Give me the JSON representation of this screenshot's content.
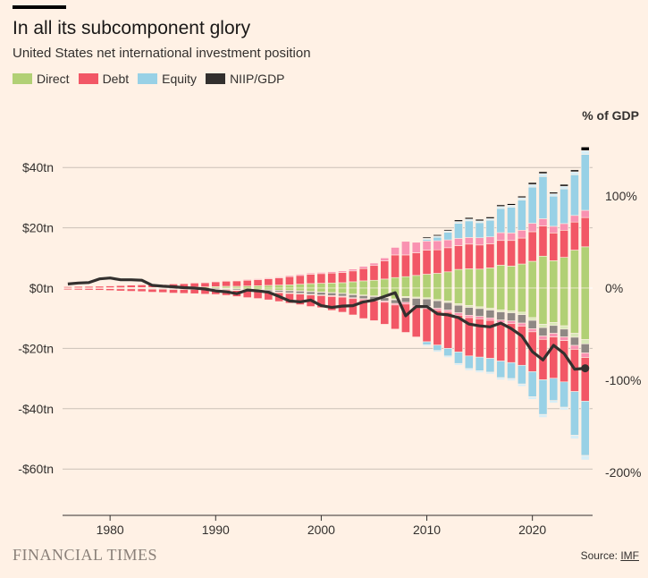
{
  "header": {
    "title": "In all its subcomponent glory",
    "subtitle": "United States net international investment position",
    "right_axis_label": "% of GDP"
  },
  "footer": {
    "brand": "FINANCIAL TIMES",
    "source_prefix": "Source: ",
    "source_link": "IMF"
  },
  "colors": {
    "direct": "#b1d075",
    "debt": "#f25766",
    "equity": "#98d1e6",
    "niip": "#33302e"
  },
  "chart_data": {
    "type": "bar",
    "title": "In all its subcomponent glory",
    "subtitle": "United States net international investment position",
    "legend": [
      {
        "name": "Direct",
        "color": "#b1d075"
      },
      {
        "name": "Debt",
        "color": "#f25766"
      },
      {
        "name": "Equity",
        "color": "#98d1e6"
      },
      {
        "name": "NIIP/GDP",
        "color": "#33302e"
      }
    ],
    "left_axis": {
      "range": [
        -71,
        43
      ],
      "ticks": [
        40,
        20,
        0,
        -20,
        -40,
        -60
      ],
      "tick_labels": [
        "$40tn",
        "$20tn",
        "$0tn",
        "-$20tn",
        "-$40tn",
        "-$60tn"
      ]
    },
    "right_axis": {
      "label": "% of GDP",
      "ticks": [
        100,
        0,
        -100,
        -200
      ],
      "tick_labels": [
        "100%",
        "0%",
        "-100%",
        "-200%"
      ]
    },
    "x_axis": {
      "range": [
        1975.5,
        2025.7
      ],
      "ticks": [
        1980,
        1990,
        2000,
        2010,
        2020
      ],
      "tick_labels": [
        "1980",
        "1990",
        "2000",
        "2010",
        "2020"
      ]
    },
    "years": [
      1976,
      1977,
      1978,
      1979,
      1980,
      1981,
      1982,
      1983,
      1984,
      1985,
      1986,
      1987,
      1988,
      1989,
      1990,
      1991,
      1992,
      1993,
      1994,
      1995,
      1996,
      1997,
      1998,
      1999,
      2000,
      2001,
      2002,
      2003,
      2004,
      2005,
      2006,
      2007,
      2008,
      2009,
      2010,
      2011,
      2012,
      2013,
      2014,
      2015,
      2016,
      2017,
      2018,
      2019,
      2020,
      2021,
      2022,
      2023,
      2024,
      2025
    ],
    "assets": {
      "direct": [
        0.1,
        0.1,
        0.1,
        0.1,
        0.15,
        0.15,
        0.2,
        0.2,
        0.2,
        0.2,
        0.3,
        0.3,
        0.4,
        0.4,
        0.5,
        0.6,
        0.6,
        0.7,
        0.8,
        0.9,
        1.0,
        1.1,
        1.3,
        1.5,
        1.6,
        1.7,
        1.8,
        2.1,
        2.4,
        2.6,
        3.0,
        3.5,
        3.8,
        4.2,
        4.6,
        4.9,
        5.4,
        6.2,
        6.4,
        6.3,
        6.7,
        7.6,
        7.3,
        8.0,
        8.9,
        10.6,
        9.1,
        10.2,
        12.6,
        13.7
      ],
      "debt": [
        0.4,
        0.45,
        0.5,
        0.55,
        0.6,
        0.7,
        0.8,
        0.9,
        1.0,
        1.0,
        1.1,
        1.2,
        1.3,
        1.4,
        1.6,
        1.7,
        1.8,
        1.9,
        2.0,
        2.2,
        2.4,
        2.7,
        2.9,
        3.1,
        3.2,
        3.3,
        3.4,
        3.6,
        4.1,
        4.9,
        6.0,
        7.5,
        7.2,
        7.5,
        8.0,
        7.8,
        8.0,
        7.9,
        8.2,
        8.0,
        8.0,
        8.2,
        8.5,
        8.6,
        9.8,
        10.0,
        9.2,
        9.0,
        9.3,
        9.7
      ],
      "debt_light": [
        0.05,
        0.05,
        0.05,
        0.05,
        0.05,
        0.1,
        0.1,
        0.1,
        0.1,
        0.1,
        0.1,
        0.15,
        0.15,
        0.2,
        0.2,
        0.2,
        0.2,
        0.25,
        0.3,
        0.3,
        0.3,
        0.35,
        0.4,
        0.4,
        0.4,
        0.45,
        0.5,
        0.6,
        0.7,
        0.8,
        1.0,
        2.5,
        4.5,
        3.5,
        3.0,
        3.0,
        2.6,
        2.4,
        2.2,
        2.4,
        2.3,
        2.6,
        2.5,
        2.6,
        2.8,
        2.4,
        2.2,
        2.2,
        2.2,
        2.4
      ],
      "equity": [
        0,
        0,
        0,
        0,
        0,
        0,
        0,
        0,
        0,
        0,
        0,
        0,
        0,
        0,
        0,
        0,
        0,
        0,
        0,
        0,
        0,
        0,
        0,
        0,
        0,
        0,
        0,
        0,
        0,
        0,
        0,
        0,
        0,
        0,
        0.5,
        1.2,
        2.5,
        5.0,
        5.5,
        5.0,
        5.5,
        8.0,
        8.5,
        10.0,
        12.0,
        14.0,
        10.0,
        11.5,
        13.5,
        18.5
      ],
      "equity_light": [
        0,
        0,
        0,
        0,
        0,
        0,
        0,
        0,
        0,
        0,
        0,
        0,
        0,
        0,
        0,
        0,
        0,
        0,
        0,
        0,
        0,
        0,
        0,
        0,
        0,
        0,
        0,
        0,
        0,
        0,
        0,
        0,
        0,
        0,
        0.4,
        0.4,
        0.5,
        0.6,
        0.6,
        0.6,
        0.6,
        0.7,
        0.7,
        0.8,
        0.9,
        1.0,
        0.8,
        0.9,
        1.0,
        1.3
      ],
      "niip": [
        0,
        0,
        0,
        0,
        0,
        0,
        0,
        0,
        0,
        0,
        0,
        0,
        0,
        0,
        0,
        0,
        0,
        0,
        0,
        0,
        0,
        0,
        0,
        0,
        0,
        0,
        0,
        0,
        0,
        0,
        0,
        0,
        0,
        0,
        0.4,
        0.4,
        0.4,
        0.5,
        0.5,
        0.5,
        0.5,
        0.5,
        0.5,
        0.5,
        0.6,
        0.6,
        0.5,
        0.6,
        0.6,
        1.2
      ]
    },
    "liabilities": {
      "direct": [
        0,
        0,
        0,
        0,
        0,
        0,
        0,
        0,
        -0.05,
        -0.05,
        -0.05,
        -0.05,
        -0.05,
        -0.1,
        -0.1,
        -0.2,
        -0.3,
        -0.4,
        -0.5,
        -0.6,
        -0.7,
        -0.8,
        -0.9,
        -1.1,
        -1.3,
        -1.5,
        -1.7,
        -2.0,
        -2.3,
        -2.6,
        -3.0,
        -3.6,
        -2.8,
        -3.0,
        -3.2,
        -3.8,
        -4.3,
        -5.2,
        -5.8,
        -6.2,
        -6.7,
        -7.2,
        -7.5,
        -8.0,
        -9.8,
        -12.0,
        -11.4,
        -12.5,
        -15.0,
        -17.0
      ],
      "direct_light": [
        0,
        0,
        0,
        0,
        0,
        0,
        0,
        0,
        0,
        0,
        0,
        0,
        0,
        0,
        0,
        0,
        0,
        0,
        0,
        -0.05,
        -0.05,
        -0.1,
        -0.1,
        -0.1,
        -0.1,
        -0.1,
        -0.1,
        -0.2,
        -0.2,
        -0.2,
        -0.2,
        -0.3,
        -0.4,
        -0.4,
        -0.4,
        -0.4,
        -0.5,
        -0.5,
        -0.6,
        -0.6,
        -0.6,
        -0.7,
        -0.7,
        -0.8,
        -0.9,
        -1.1,
        -1.0,
        -1.1,
        -1.3,
        -1.5
      ],
      "equity": [
        -0.1,
        -0.1,
        -0.1,
        -0.1,
        -0.15,
        -0.2,
        -0.2,
        -0.2,
        -0.25,
        -0.25,
        -0.3,
        -0.3,
        -0.3,
        -0.3,
        -0.3,
        -0.3,
        -0.4,
        -0.4,
        -0.4,
        -0.5,
        -0.6,
        -0.7,
        -0.8,
        -0.9,
        -0.9,
        -0.9,
        -0.9,
        -1.0,
        -1.0,
        -1.0,
        -1.1,
        -1.2,
        -1.5,
        -2.5,
        -2.5,
        -2.5,
        -2.5,
        -2.5,
        -2.6,
        -2.6,
        -2.6,
        -2.7,
        -2.7,
        -2.8,
        -2.8,
        -2.8,
        -2.6,
        -2.6,
        -2.7,
        -3.0
      ],
      "debt": [
        -0.4,
        -0.45,
        -0.5,
        -0.55,
        -0.6,
        -0.7,
        -0.8,
        -0.9,
        -1.0,
        -1.1,
        -1.2,
        -1.3,
        -1.4,
        -1.5,
        -1.6,
        -1.8,
        -2.0,
        -2.2,
        -2.4,
        -2.6,
        -2.9,
        -3.2,
        -3.5,
        -3.8,
        -4.0,
        -4.6,
        -5.0,
        -5.4,
        -6.2,
        -6.6,
        -7.3,
        -8.0,
        -9.4,
        -9.7,
        -11.0,
        -11.5,
        -12.0,
        -12.2,
        -12.7,
        -12.7,
        -12.6,
        -12.7,
        -12.9,
        -13.0,
        -13.2,
        -13.4,
        -13.7,
        -13.7,
        -14.0,
        -14.5
      ],
      "debt_light": [
        -0.05,
        -0.05,
        -0.05,
        -0.05,
        -0.05,
        -0.05,
        -0.05,
        -0.05,
        -0.05,
        -0.05,
        -0.1,
        -0.1,
        -0.1,
        -0.1,
        -0.1,
        -0.1,
        -0.1,
        -0.15,
        -0.15,
        -0.15,
        -0.2,
        -0.2,
        -0.2,
        -0.2,
        -0.2,
        -0.3,
        -0.3,
        -0.3,
        -0.4,
        -0.4,
        -0.4,
        -0.5,
        -0.6,
        -0.6,
        -0.7,
        -0.7,
        -0.7,
        -0.8,
        -0.8,
        -0.8,
        -0.8,
        -0.9,
        -0.9,
        -1.0,
        -1.0,
        -1.1,
        -1.2,
        -1.2,
        -1.3,
        -1.5
      ],
      "equity2": [
        0,
        0,
        0,
        0,
        0,
        0,
        0,
        0,
        0,
        0,
        0,
        0,
        0,
        0,
        0,
        0,
        0,
        0,
        0,
        0,
        0,
        0,
        0,
        0,
        0,
        0,
        0,
        0,
        0,
        0,
        0,
        0,
        0,
        0,
        -1.0,
        -1.8,
        -2.5,
        -3.8,
        -4.2,
        -4.5,
        -4.6,
        -5.5,
        -5.3,
        -6.2,
        -8.3,
        -11.5,
        -7.4,
        -8.4,
        -14.5,
        -18.0
      ],
      "equity2_light": [
        0,
        0,
        0,
        0,
        0,
        0,
        0,
        0,
        0,
        0,
        0,
        0,
        0,
        0,
        0,
        0,
        0,
        0,
        0,
        0,
        0,
        0,
        0,
        0,
        0,
        0,
        0,
        0,
        0,
        0,
        0,
        0,
        0,
        0,
        -0.5,
        -0.5,
        -0.5,
        -0.6,
        -0.6,
        -0.6,
        -0.6,
        -0.7,
        -0.7,
        -0.8,
        -0.9,
        -1.0,
        -0.8,
        -0.9,
        -1.2,
        -1.5
      ]
    },
    "niip_gdp_series": {
      "name": "NIIP/GDP",
      "years": [
        1976,
        1977,
        1978,
        1979,
        1980,
        1981,
        1982,
        1983,
        1984,
        1985,
        1986,
        1987,
        1988,
        1989,
        1990,
        1991,
        1992,
        1993,
        1994,
        1995,
        1996,
        1997,
        1998,
        1999,
        2000,
        2001,
        2002,
        2003,
        2004,
        2005,
        2006,
        2007,
        2008,
        2009,
        2010,
        2011,
        2012,
        2013,
        2014,
        2015,
        2016,
        2017,
        2018,
        2019,
        2020,
        2021,
        2022,
        2023,
        2024,
        2025
      ],
      "values": [
        4.5,
        5.5,
        6,
        10,
        11,
        9,
        9,
        8.5,
        3,
        2,
        1.5,
        0.5,
        0,
        -1,
        -3,
        -4,
        -6,
        -2,
        -3,
        -4.5,
        -9,
        -14,
        -15,
        -13,
        -19,
        -21,
        -19.5,
        -19,
        -15,
        -13,
        -9,
        -5,
        -30,
        -20,
        -20,
        -28,
        -29,
        -32,
        -39,
        -41,
        -42,
        -38,
        -44,
        -52,
        -69,
        -78,
        -62,
        -71,
        -88,
        -87
      ]
    }
  }
}
